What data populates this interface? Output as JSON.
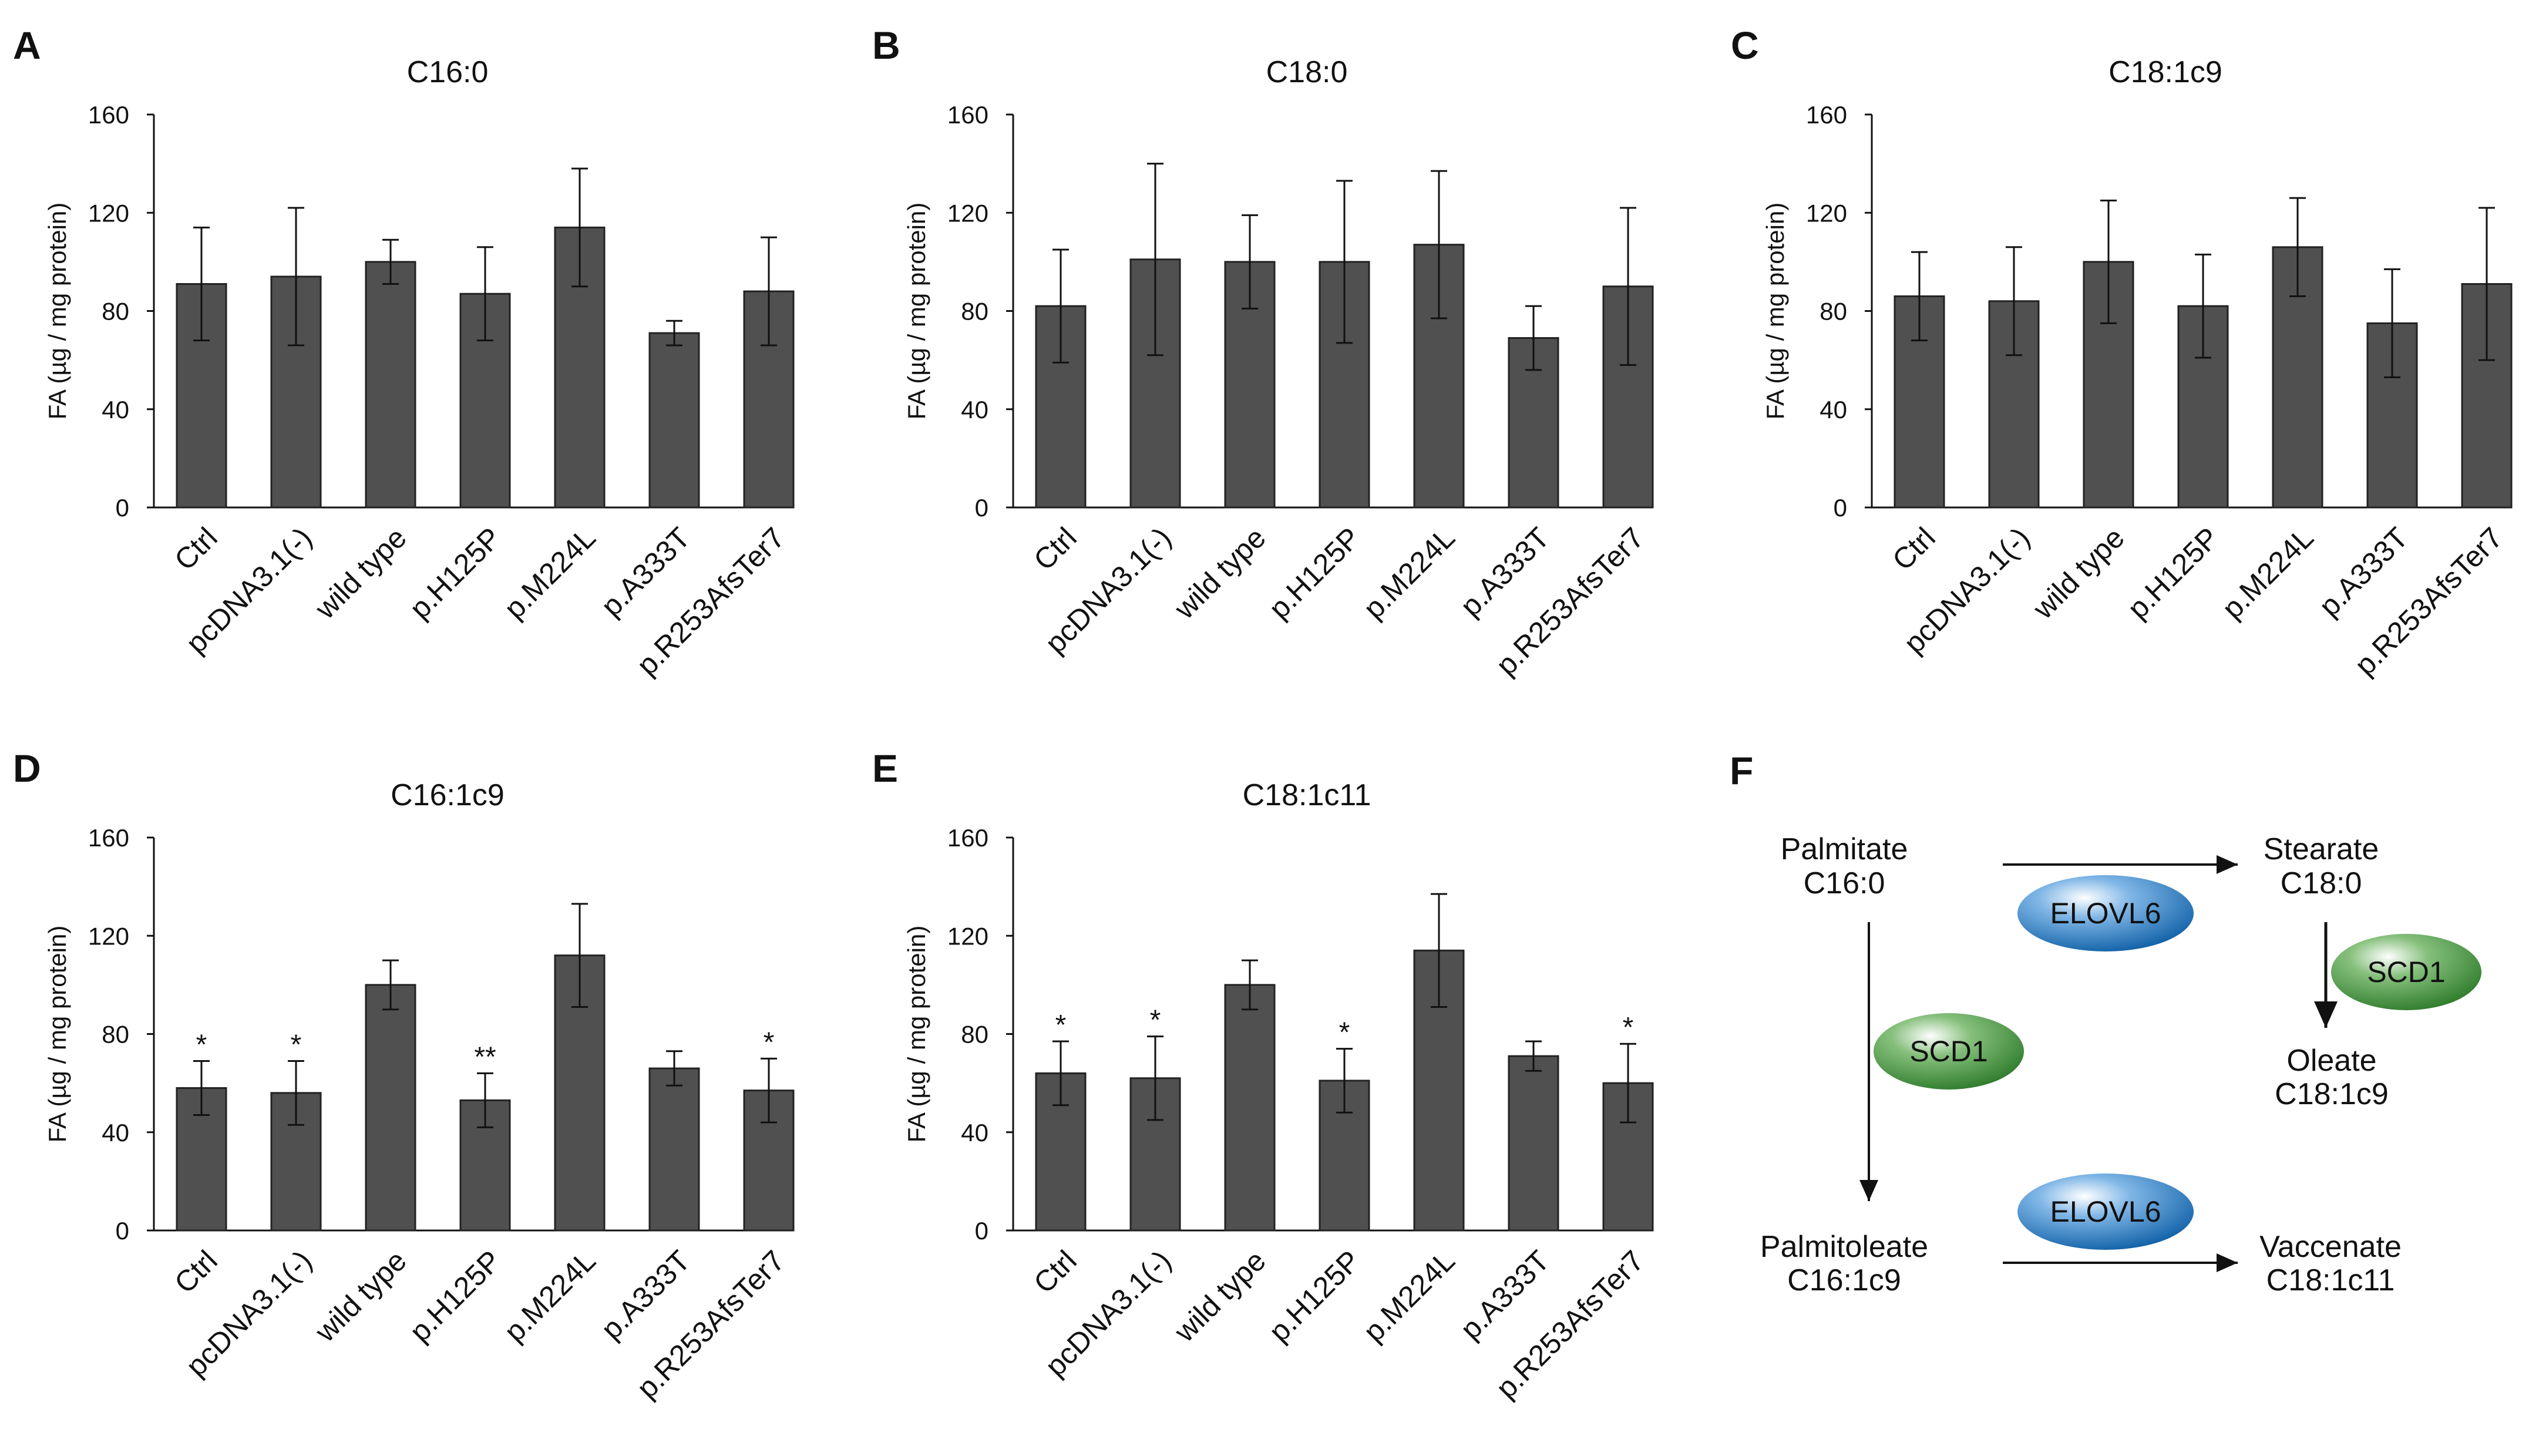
{
  "chart_data": [
    {
      "panel": "A",
      "type": "bar",
      "title": "C16:0",
      "ylabel": "FA (µg / mg protein)",
      "xlabel": "",
      "categories": [
        "Ctrl",
        "pcDNA3.1(-)",
        "wild type",
        "p.H125P",
        "p.M224L",
        "p.A333T",
        "p.R253AfsTer7"
      ],
      "values": [
        91,
        94,
        100,
        87,
        114,
        71,
        88
      ],
      "errors": [
        23,
        28,
        9,
        19,
        24,
        5,
        22
      ],
      "significance": [
        "",
        "",
        "",
        "",
        "",
        "",
        ""
      ],
      "ylim": [
        0,
        160
      ],
      "yticks": [
        "0",
        "40",
        "80",
        "120",
        "160"
      ],
      "grid": false,
      "bar_color": "#505050"
    },
    {
      "panel": "B",
      "type": "bar",
      "title": "C18:0",
      "ylabel": "FA (µg / mg protein)",
      "xlabel": "",
      "categories": [
        "Ctrl",
        "pcDNA3.1(-)",
        "wild type",
        "p.H125P",
        "p.M224L",
        "p.A333T",
        "p.R253AfsTer7"
      ],
      "values": [
        82,
        101,
        100,
        100,
        107,
        69,
        90
      ],
      "errors": [
        23,
        39,
        19,
        33,
        30,
        13,
        32
      ],
      "significance": [
        "",
        "",
        "",
        "",
        "",
        "",
        ""
      ],
      "ylim": [
        0,
        160
      ],
      "yticks": [
        "0",
        "40",
        "80",
        "120",
        "160"
      ],
      "grid": false,
      "bar_color": "#505050"
    },
    {
      "panel": "C",
      "type": "bar",
      "title": "C18:1c9",
      "ylabel": "FA (µg / mg protein)",
      "xlabel": "",
      "categories": [
        "Ctrl",
        "pcDNA3.1(-)",
        "wild type",
        "p.H125P",
        "p.M224L",
        "p.A333T",
        "p.R253AfsTer7"
      ],
      "values": [
        86,
        84,
        100,
        82,
        106,
        75,
        91
      ],
      "errors": [
        18,
        22,
        25,
        21,
        20,
        22,
        31
      ],
      "significance": [
        "",
        "",
        "",
        "",
        "",
        "",
        ""
      ],
      "ylim": [
        0,
        160
      ],
      "yticks": [
        "0",
        "40",
        "80",
        "120",
        "160"
      ],
      "grid": false,
      "bar_color": "#505050"
    },
    {
      "panel": "D",
      "type": "bar",
      "title": "C16:1c9",
      "ylabel": "FA (µg / mg protein)",
      "xlabel": "",
      "categories": [
        "Ctrl",
        "pcDNA3.1(-)",
        "wild type",
        "p.H125P",
        "p.M224L",
        "p.A333T",
        "p.R253AfsTer7"
      ],
      "values": [
        58,
        56,
        100,
        53,
        112,
        66,
        57
      ],
      "errors": [
        11,
        13,
        10,
        11,
        21,
        7,
        13
      ],
      "significance": [
        "*",
        "*",
        "",
        "**",
        "",
        "",
        "*"
      ],
      "ylim": [
        0,
        160
      ],
      "yticks": [
        "0",
        "40",
        "80",
        "120",
        "160"
      ],
      "grid": false,
      "bar_color": "#505050"
    },
    {
      "panel": "E",
      "type": "bar",
      "title": "C18:1c11",
      "ylabel": "FA (µg / mg protein)",
      "xlabel": "",
      "categories": [
        "Ctrl",
        "pcDNA3.1(-)",
        "wild type",
        "p.H125P",
        "p.M224L",
        "p.A333T",
        "p.R253AfsTer7"
      ],
      "values": [
        64,
        62,
        100,
        61,
        114,
        71,
        60
      ],
      "errors": [
        13,
        17,
        10,
        13,
        23,
        6,
        16
      ],
      "significance": [
        "*",
        "*",
        "",
        "*",
        "",
        "",
        "*"
      ],
      "ylim": [
        0,
        160
      ],
      "yticks": [
        "0",
        "40",
        "80",
        "120",
        "160"
      ],
      "grid": false,
      "bar_color": "#505050"
    }
  ],
  "pathway": {
    "panel": "F",
    "palmitate_name": "Palmitate",
    "palmitate_code": "C16:0",
    "stearate_name": "Stearate",
    "stearate_code": "C18:0",
    "oleate_name": "Oleate",
    "oleate_code": "C18:1c9",
    "palmitoleate_name": "Palmitoleate",
    "palmitoleate_code": "C16:1c9",
    "vaccenate_name": "Vaccenate",
    "vaccenate_code": "C18:1c11",
    "enzyme_elongase": "ELOVL6",
    "enzyme_desaturase": "SCD1",
    "elongase_color": "#1f73b7",
    "desaturase_color": "#3d8a3d"
  }
}
